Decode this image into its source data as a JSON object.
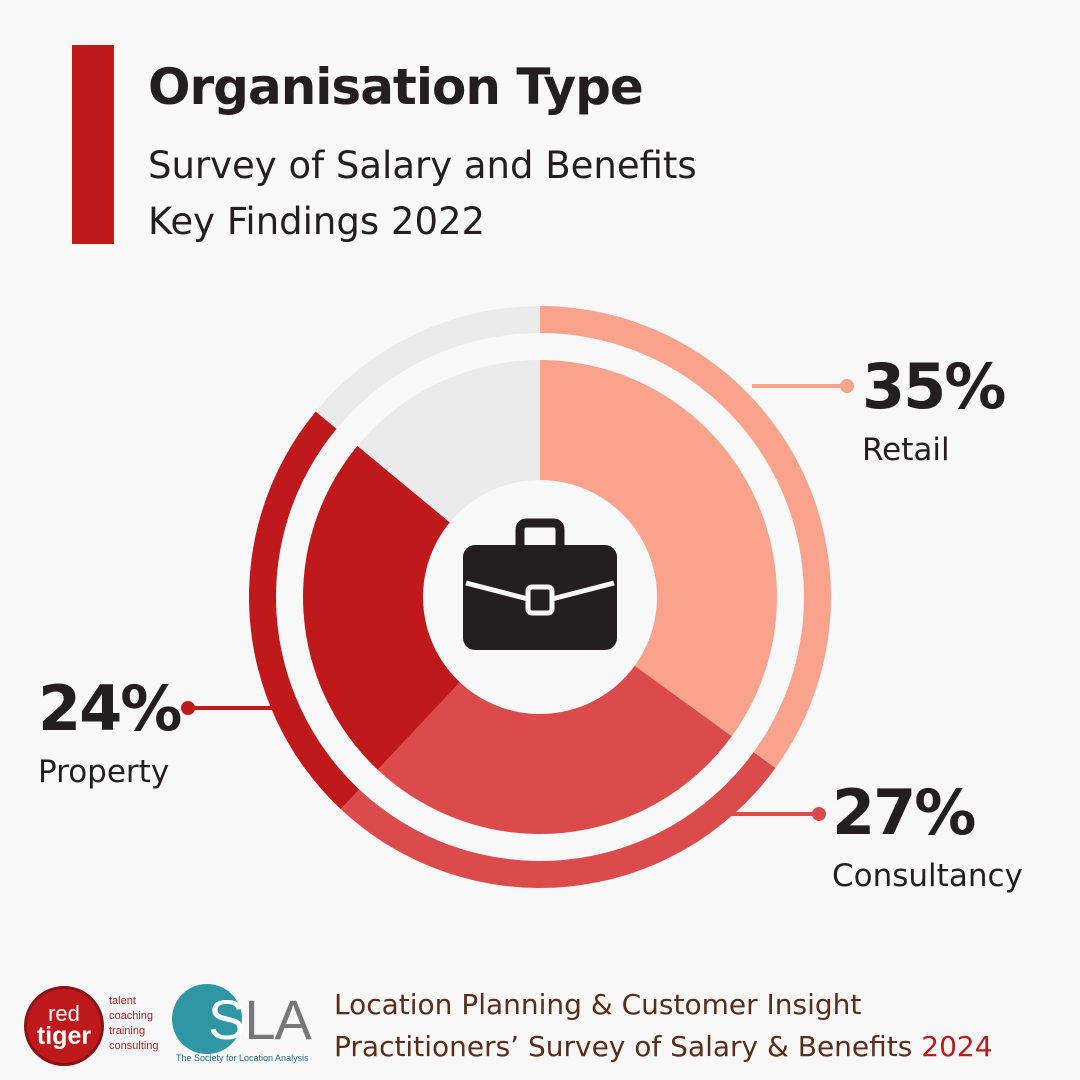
{
  "header": {
    "title": "Organisation Type",
    "subtitle_line1": "Survey of Salary and Benefits",
    "subtitle_line2": "Key Findings 2022"
  },
  "chart_data": {
    "type": "pie",
    "style": "donut",
    "slices": [
      {
        "label": "Retail",
        "value": 35,
        "display": "35%",
        "color": "#f9a38d"
      },
      {
        "label": "Consultancy",
        "value": 27,
        "display": "27%",
        "color": "#dc4b4b"
      },
      {
        "label": "Property",
        "value": 24,
        "display": "24%",
        "color": "#c0191b"
      },
      {
        "label": "",
        "value": 14,
        "display": "",
        "color": "#ebebeb"
      }
    ],
    "center_icon": "briefcase-icon"
  },
  "footer": {
    "line1": "Location Planning & Customer Insight",
    "line2": "Practitioners’ Survey of Salary & Benefits",
    "year": "2024",
    "red_tiger_logo": {
      "red": "red",
      "tiger": "tiger",
      "tags": [
        "talent",
        "coaching",
        "training",
        "consulting"
      ]
    },
    "sla_logo": {
      "s": "S",
      "la": "LA",
      "tagline": "The Society for Location Analysis"
    }
  },
  "colors": {
    "accent": "#c0191b",
    "text": "#231f20",
    "footer_text": "#5a2d1a",
    "background": "#f8f8f8"
  }
}
